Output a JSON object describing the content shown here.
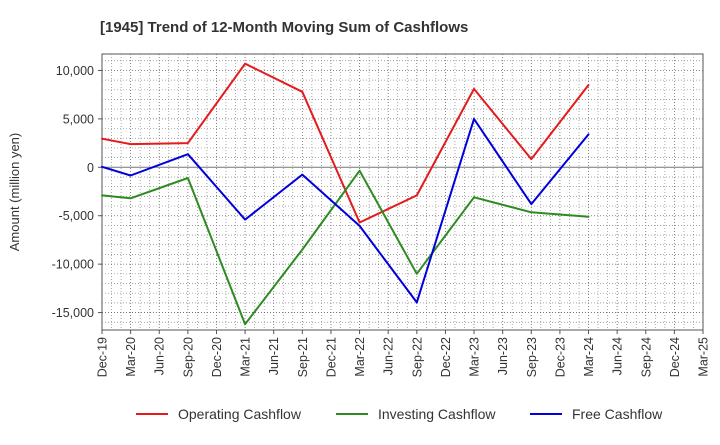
{
  "chart_data": {
    "type": "line",
    "title": "[1945]  Trend of 12-Month Moving Sum of Cashflows",
    "ylabel": "Amount (million yen)",
    "xlabel": "",
    "ylim": [
      -16800,
      11700
    ],
    "yticks": [
      10000,
      5000,
      0,
      -5000,
      -10000,
      -15000
    ],
    "ytick_labels": [
      "10,000",
      "5,000",
      "0",
      "-5,000",
      "-10,000",
      "-15,000"
    ],
    "categories": [
      "Dec-19",
      "Mar-20",
      "Jun-20",
      "Sep-20",
      "Dec-20",
      "Mar-21",
      "Jun-21",
      "Sep-21",
      "Dec-21",
      "Mar-22",
      "Jun-22",
      "Sep-22",
      "Dec-22",
      "Mar-23",
      "Jun-23",
      "Sep-23",
      "Dec-23",
      "Mar-24",
      "Jun-24",
      "Sep-24",
      "Dec-24",
      "Mar-25"
    ],
    "grid": true,
    "legend_position": "bottom",
    "series": [
      {
        "name": "Operating Cashflow",
        "color": "#e41a1c",
        "values": [
          2950,
          2400,
          null,
          2500,
          null,
          10700,
          null,
          7800,
          null,
          -5700,
          null,
          -2900,
          null,
          8100,
          null,
          850,
          null,
          8500,
          null,
          null,
          null,
          null
        ]
      },
      {
        "name": "Investing Cashflow",
        "color": "#2e8b22",
        "values": [
          -2900,
          -3200,
          null,
          -1100,
          null,
          -16200,
          null,
          -8500,
          null,
          -350,
          null,
          -11000,
          null,
          -3100,
          null,
          -4650,
          null,
          -5100,
          null,
          null,
          null,
          null
        ]
      },
      {
        "name": "Free Cashflow",
        "color": "#0000dd",
        "values": [
          50,
          -850,
          null,
          1350,
          null,
          -5400,
          null,
          -750,
          null,
          -6050,
          null,
          -13950,
          null,
          5000,
          null,
          -3800,
          null,
          3400,
          null,
          null,
          null,
          null
        ]
      }
    ]
  }
}
